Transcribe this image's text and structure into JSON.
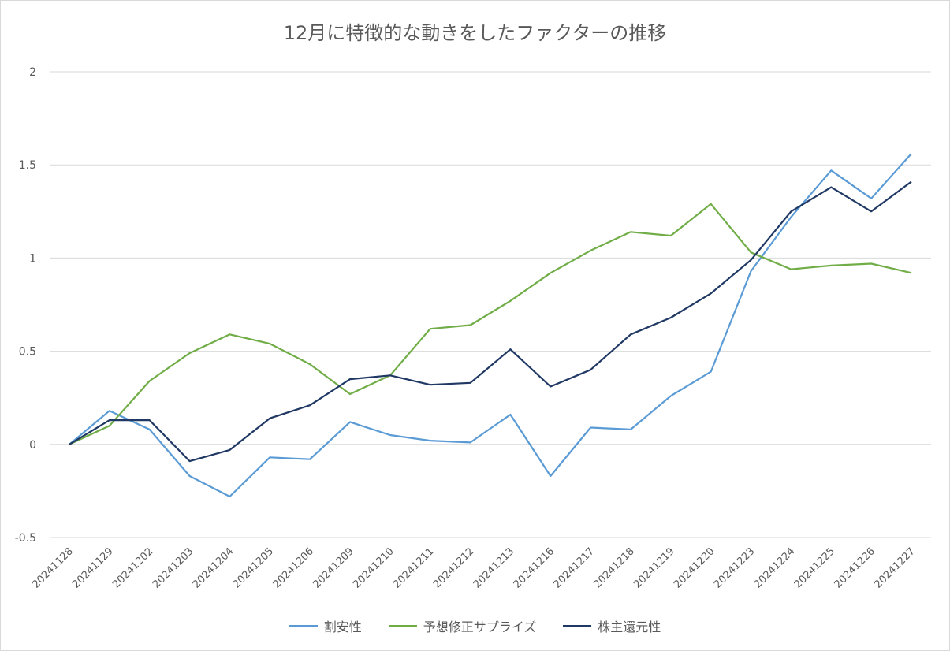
{
  "chart_data": {
    "type": "line",
    "title": "12月に特徴的な動きをしたファクターの推移",
    "xlabel": "",
    "ylabel": "",
    "ylim": [
      -0.5,
      2
    ],
    "yticks": [
      "2",
      "1.5",
      "1",
      "0.5",
      "0",
      "-0.5"
    ],
    "ytick_values": [
      2,
      1.5,
      1,
      0.5,
      0,
      -0.5
    ],
    "grid": true,
    "legend_position": "bottom",
    "categories": [
      "20241128",
      "20241129",
      "20241202",
      "20241203",
      "20241204",
      "20241205",
      "20241206",
      "20241209",
      "20241210",
      "20241211",
      "20241212",
      "20241213",
      "20241216",
      "20241217",
      "20241218",
      "20241219",
      "20241220",
      "20241223",
      "20241224",
      "20241225",
      "20241226",
      "20241227"
    ],
    "series": [
      {
        "name": "割安性",
        "color": "#5b9bd5",
        "values": [
          0,
          0.18,
          0.08,
          -0.17,
          -0.28,
          -0.07,
          -0.08,
          0.12,
          0.05,
          0.02,
          0.01,
          0.16,
          -0.17,
          0.09,
          0.08,
          0.26,
          0.39,
          0.93,
          1.22,
          1.47,
          1.32,
          1.56
        ]
      },
      {
        "name": "予想修正サプライズ",
        "color": "#70ad47",
        "values": [
          0,
          0.1,
          0.34,
          0.49,
          0.59,
          0.54,
          0.43,
          0.27,
          0.37,
          0.62,
          0.64,
          0.77,
          0.92,
          1.04,
          1.14,
          1.12,
          1.29,
          1.03,
          0.94,
          0.96,
          0.97,
          0.92
        ]
      },
      {
        "name": "株主還元性",
        "color": "#203864",
        "values": [
          0,
          0.13,
          0.13,
          -0.09,
          -0.03,
          0.14,
          0.21,
          0.35,
          0.37,
          0.32,
          0.33,
          0.51,
          0.31,
          0.4,
          0.59,
          0.68,
          0.81,
          0.99,
          1.25,
          1.38,
          1.25,
          1.41
        ]
      }
    ]
  }
}
